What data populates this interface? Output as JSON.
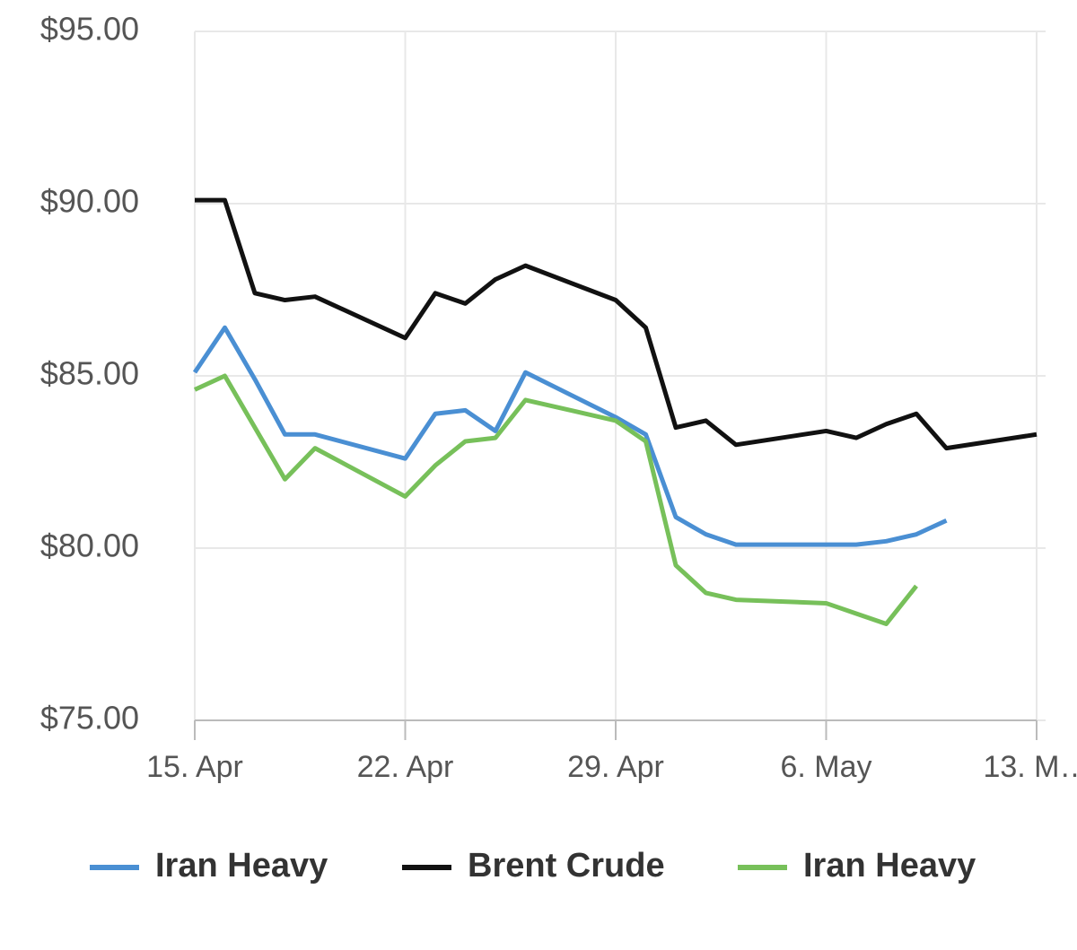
{
  "chart_data": {
    "type": "line",
    "x": [
      "04-15",
      "04-16",
      "04-17",
      "04-18",
      "04-19",
      "04-22",
      "04-23",
      "04-24",
      "04-25",
      "04-26",
      "04-29",
      "04-30",
      "05-01",
      "05-02",
      "05-03",
      "05-06",
      "05-07",
      "05-08",
      "05-09",
      "05-10",
      "05-13"
    ],
    "series": [
      {
        "name": "Iran Heavy",
        "color": "#4a8fd3",
        "values": [
          85.1,
          86.4,
          84.9,
          83.3,
          83.3,
          82.6,
          83.9,
          84.0,
          83.4,
          85.1,
          83.8,
          83.3,
          80.9,
          80.4,
          80.1,
          80.1,
          80.1,
          80.2,
          80.4,
          80.8,
          null
        ]
      },
      {
        "name": "Brent Crude",
        "color": "#111111",
        "values": [
          90.1,
          90.1,
          87.4,
          87.2,
          87.3,
          86.1,
          87.4,
          87.1,
          87.8,
          88.2,
          87.2,
          86.4,
          83.5,
          83.7,
          83.0,
          83.4,
          83.2,
          83.6,
          83.9,
          82.9,
          83.3
        ]
      },
      {
        "name": "Iran Heavy",
        "color": "#77c05a",
        "values": [
          84.6,
          85.0,
          83.5,
          82.0,
          82.9,
          81.5,
          82.4,
          83.1,
          83.2,
          84.3,
          83.7,
          83.1,
          79.5,
          78.7,
          78.5,
          78.4,
          78.1,
          77.8,
          78.9,
          null,
          null
        ]
      }
    ],
    "xlim": [
      "04-15",
      "05-13"
    ],
    "xticks": [
      {
        "value": "04-15",
        "label": "15. Apr"
      },
      {
        "value": "04-22",
        "label": "22. Apr"
      },
      {
        "value": "04-29",
        "label": "29. Apr"
      },
      {
        "value": "05-06",
        "label": "6. May"
      },
      {
        "value": "05-13",
        "label": "13. M…"
      }
    ],
    "ylim": [
      75,
      95
    ],
    "yticks": [
      {
        "value": 75,
        "label": "$75.00"
      },
      {
        "value": 80,
        "label": "$80.00"
      },
      {
        "value": 85,
        "label": "$85.00"
      },
      {
        "value": 90,
        "label": "$90.00"
      },
      {
        "value": 95,
        "label": "$95.00"
      }
    ],
    "grid": true
  }
}
